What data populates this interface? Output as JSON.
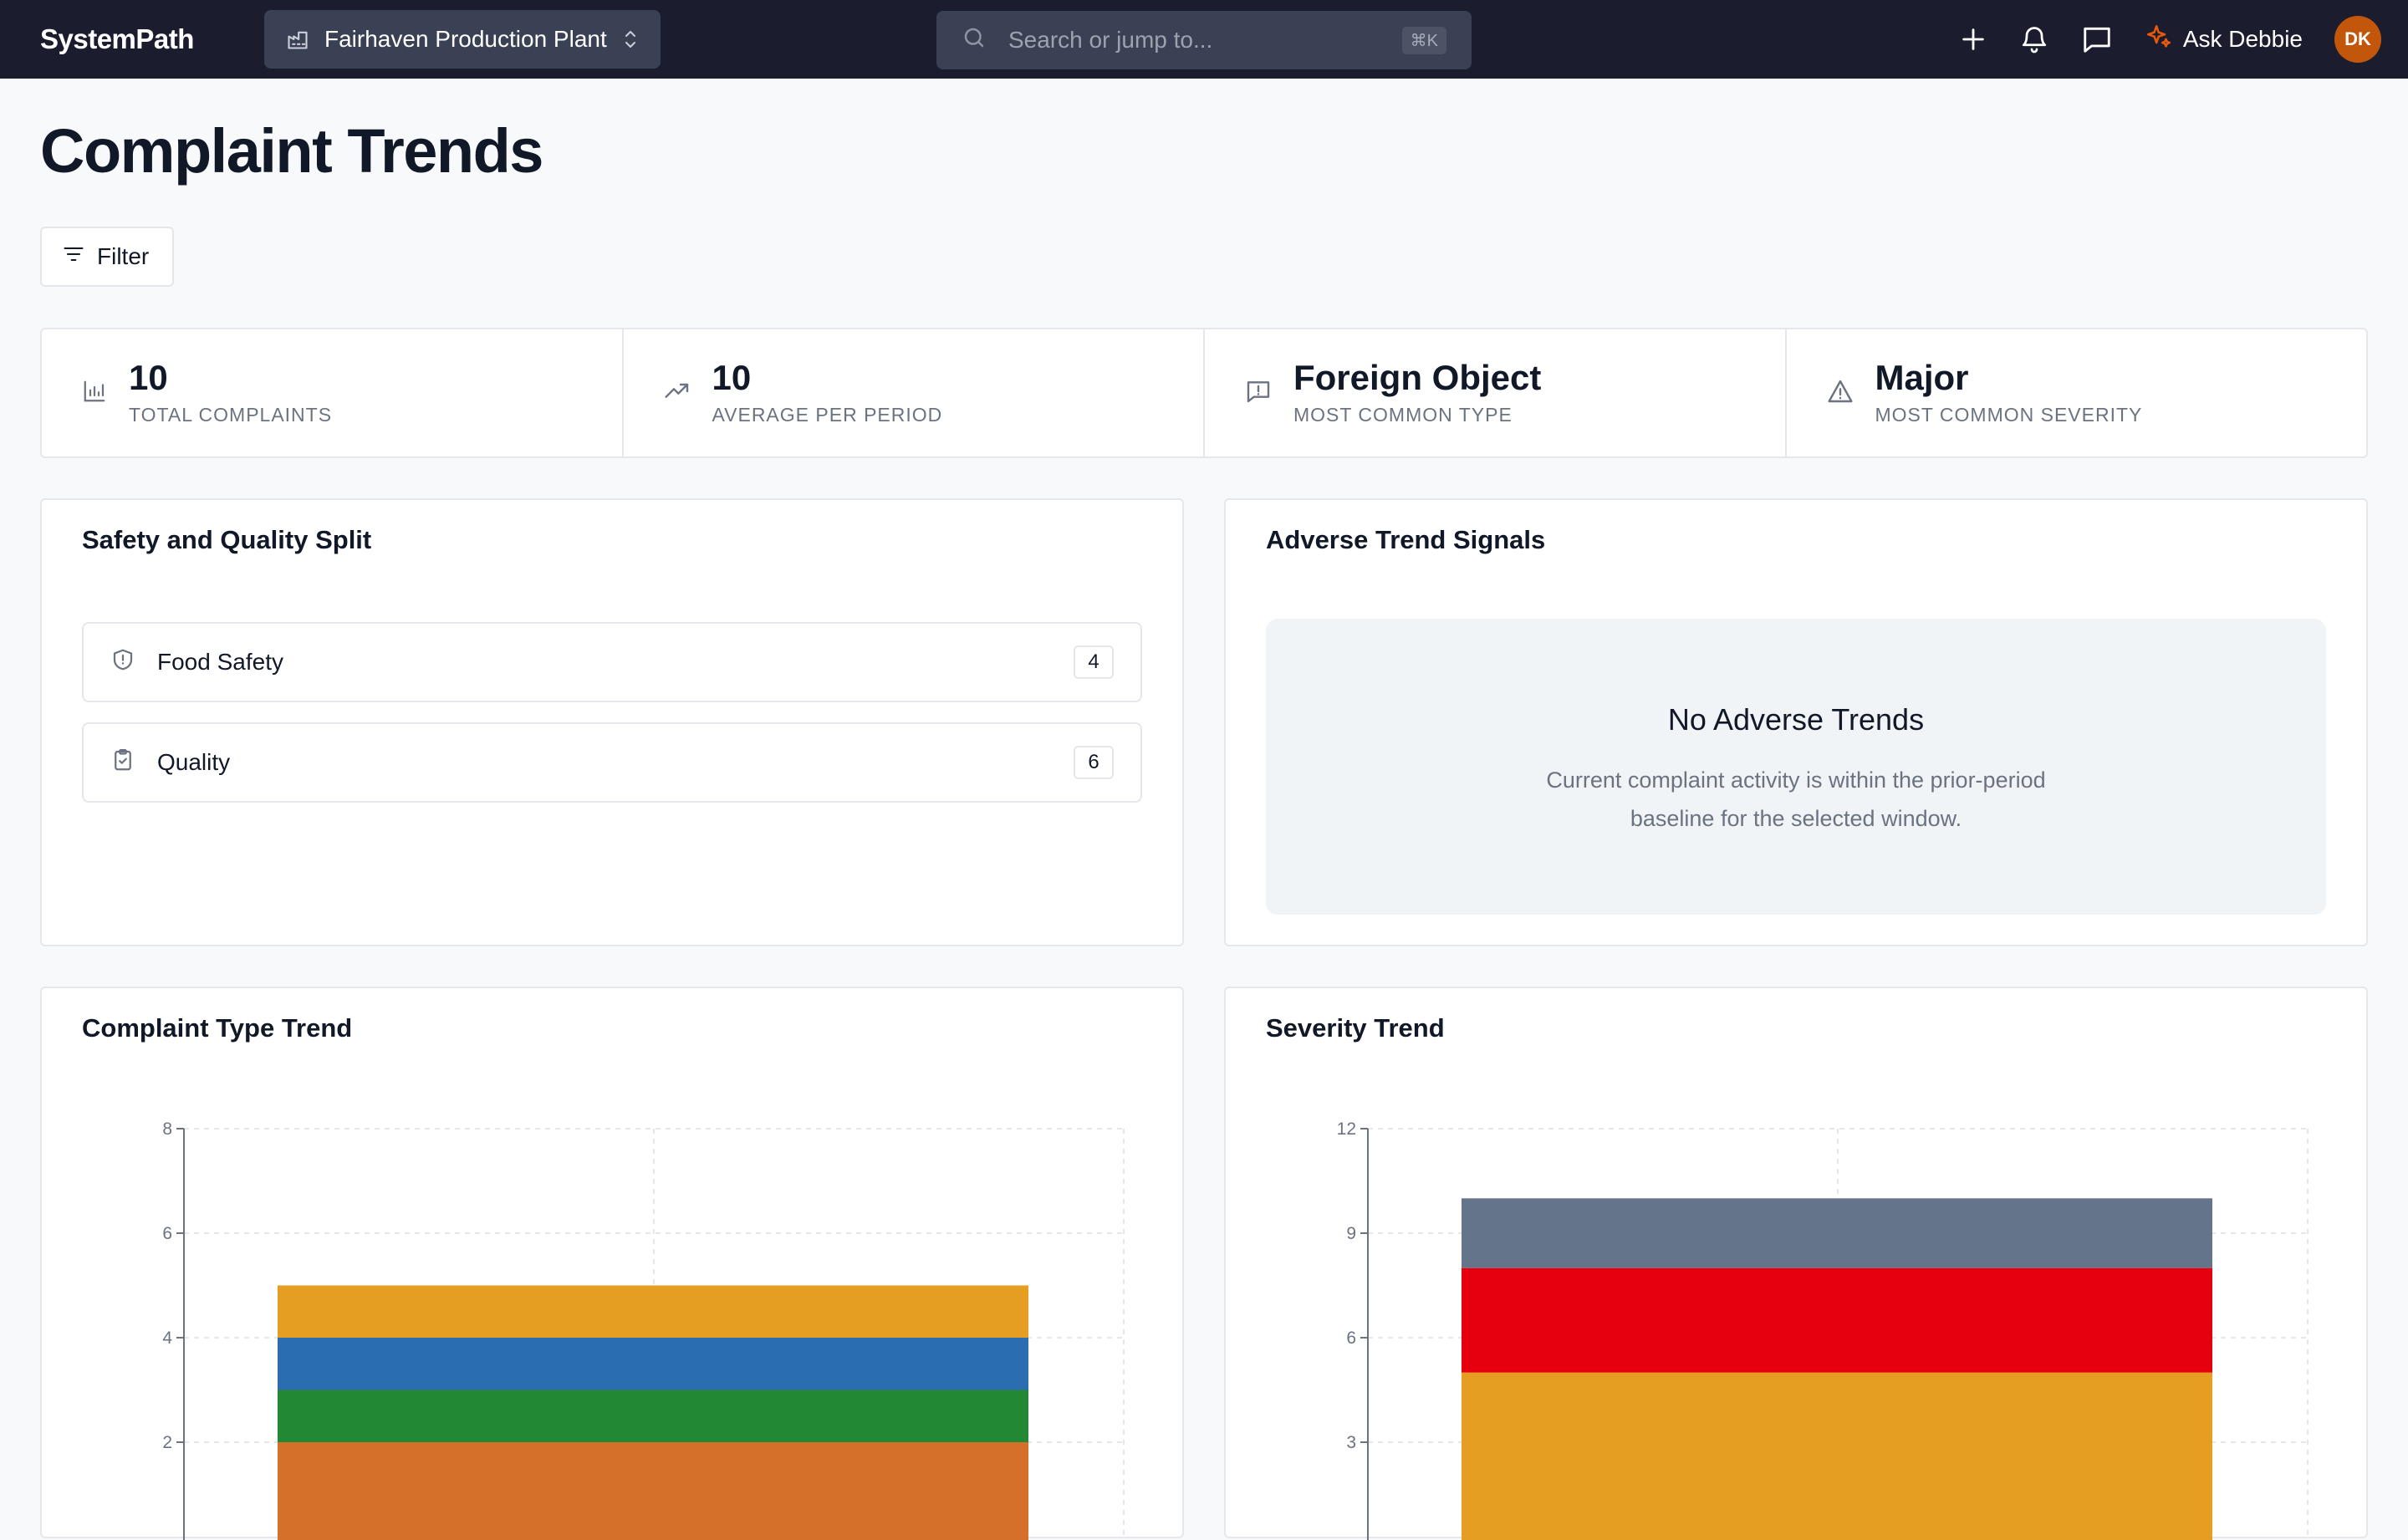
{
  "header": {
    "brand": "SystemPath",
    "site": "Fairhaven Production Plant",
    "search_placeholder": "Search or jump to...",
    "search_shortcut": "⌘K",
    "ask_label": "Ask Debbie",
    "avatar_initials": "DK"
  },
  "page": {
    "title": "Complaint Trends",
    "filter_label": "Filter"
  },
  "stats": [
    {
      "value": "10",
      "label": "TOTAL COMPLAINTS",
      "icon": "bar-chart-icon"
    },
    {
      "value": "10",
      "label": "AVERAGE PER PERIOD",
      "icon": "trending-up-icon"
    },
    {
      "value": "Foreign Object",
      "label": "MOST COMMON TYPE",
      "icon": "message-alert-icon"
    },
    {
      "value": "Major",
      "label": "MOST COMMON SEVERITY",
      "icon": "warning-triangle-icon"
    }
  ],
  "split": {
    "title": "Safety and Quality Split",
    "items": [
      {
        "label": "Food Safety",
        "count": "4",
        "icon": "shield-alert-icon"
      },
      {
        "label": "Quality",
        "count": "6",
        "icon": "clipboard-check-icon"
      }
    ]
  },
  "signals": {
    "title": "Adverse Trend Signals",
    "empty_title": "No Adverse Trends",
    "empty_desc": "Current complaint activity is within the prior-period baseline for the selected window."
  },
  "colors": {
    "accent": "#ea580c",
    "header_bg": "#1b1d2e",
    "orange": "#d4702a",
    "green": "#228833",
    "blue": "#2a6db0",
    "amber": "#e59e22",
    "red": "#e6000f",
    "slate": "#64748b"
  },
  "chart_data": [
    {
      "type": "bar",
      "title": "Complaint Type Trend",
      "stacked": true,
      "ylim": [
        0,
        8
      ],
      "yticks": [
        2,
        4,
        6,
        8
      ],
      "grid": true,
      "series": [
        {
          "values": [
            2
          ],
          "color": "#d4702a"
        },
        {
          "values": [
            1
          ],
          "color": "#228833"
        },
        {
          "values": [
            1
          ],
          "color": "#2a6db0"
        },
        {
          "values": [
            1
          ],
          "color": "#e59e22"
        }
      ]
    },
    {
      "type": "bar",
      "title": "Severity Trend",
      "stacked": true,
      "ylim": [
        0,
        12
      ],
      "yticks": [
        3,
        6,
        9,
        12
      ],
      "grid": true,
      "series": [
        {
          "values": [
            5
          ],
          "color": "#e59e22"
        },
        {
          "values": [
            3
          ],
          "color": "#e6000f"
        },
        {
          "values": [
            2
          ],
          "color": "#64748b"
        }
      ]
    }
  ]
}
